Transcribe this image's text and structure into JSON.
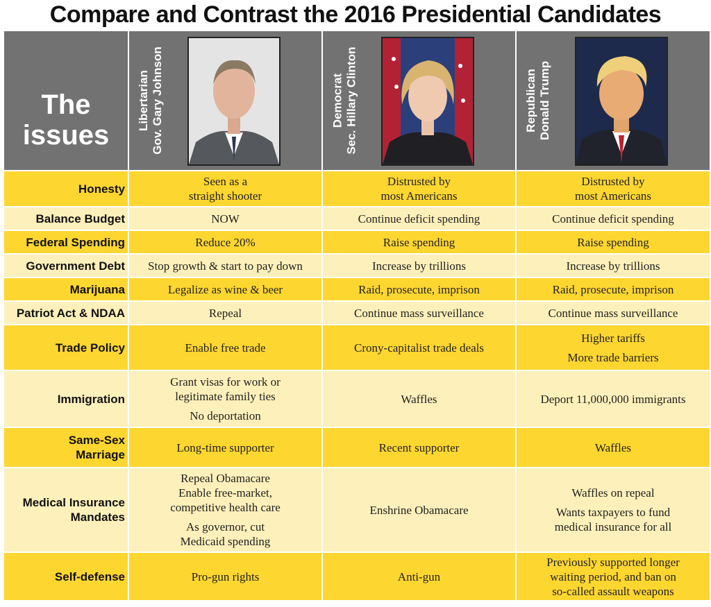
{
  "title": "Compare and Contrast the 2016 Presidential Candidates",
  "header": {
    "issues_line1": "The",
    "issues_line2": "issues",
    "candidates": [
      {
        "party": "Libertarian",
        "name": "Gov. Gary Johnson"
      },
      {
        "party": "Democrat",
        "name": "Sec. Hillary Clinton"
      },
      {
        "party": "Republican",
        "name": "Donald Trump"
      }
    ]
  },
  "rows": [
    {
      "issue": "Honesty",
      "johnson": [
        "Seen as a",
        "straight shooter"
      ],
      "clinton": [
        "Distrusted by",
        "most Americans"
      ],
      "trump": [
        "Distrusted by",
        "most Americans"
      ]
    },
    {
      "issue": "Balance Budget",
      "johnson": [
        "NOW"
      ],
      "clinton": [
        "Continue deficit spending"
      ],
      "trump": [
        "Continue deficit spending"
      ]
    },
    {
      "issue": "Federal Spending",
      "johnson": [
        "Reduce 20%"
      ],
      "clinton": [
        "Raise spending"
      ],
      "trump": [
        "Raise spending"
      ]
    },
    {
      "issue": "Government Debt",
      "johnson": [
        "Stop growth & start to pay down"
      ],
      "clinton": [
        "Increase by trillions"
      ],
      "trump": [
        "Increase by trillions"
      ]
    },
    {
      "issue": "Marijuana",
      "johnson": [
        "Legalize as wine & beer"
      ],
      "clinton": [
        "Raid, prosecute, imprison"
      ],
      "trump": [
        "Raid, prosecute, imprison"
      ]
    },
    {
      "issue": "Patriot Act & NDAA",
      "johnson": [
        "Repeal"
      ],
      "clinton": [
        "Continue mass surveillance"
      ],
      "trump": [
        "Continue mass surveillance"
      ]
    },
    {
      "issue": "Trade Policy",
      "johnson": [
        "Enable free trade"
      ],
      "clinton": [
        "Crony-capitalist trade deals"
      ],
      "trump": [
        "Higher tariffs",
        "",
        "More trade barriers"
      ]
    },
    {
      "issue": "Immigration",
      "johnson": [
        "Grant visas for work or",
        "legitimate family ties",
        "",
        "No deportation"
      ],
      "clinton": [
        "Waffles"
      ],
      "trump": [
        "Deport 11,000,000 immigrants"
      ]
    },
    {
      "issue": [
        "Same-Sex",
        "Marriage"
      ],
      "johnson": [
        "Long-time supporter"
      ],
      "clinton": [
        "Recent supporter"
      ],
      "trump": [
        "Waffles"
      ]
    },
    {
      "issue": [
        "Medical Insurance",
        "Mandates"
      ],
      "johnson": [
        "Repeal Obamacare",
        "Enable free-market,",
        "competitive health care",
        "",
        "As governor, cut",
        "Medicaid spending"
      ],
      "clinton": [
        "Enshrine Obamacare"
      ],
      "trump": [
        "Waffles on repeal",
        "",
        "Wants taxpayers to fund",
        "medical insurance for all"
      ]
    },
    {
      "issue": "Self-defense",
      "johnson": [
        "Pro-gun rights"
      ],
      "clinton": [
        "Anti-gun"
      ],
      "trump": [
        "Previously supported longer",
        "waiting period, and ban on",
        "so-called assault weapons"
      ]
    }
  ],
  "colors": {
    "header_gray": "#727272",
    "row_dark": "#fed630",
    "row_light": "#fef0ba"
  }
}
